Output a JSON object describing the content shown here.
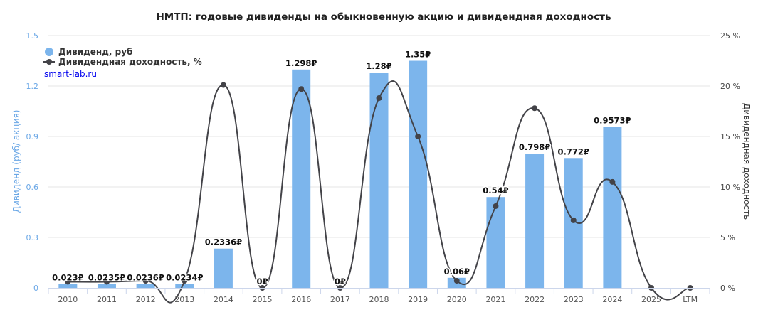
{
  "chart_data": {
    "type": "bar",
    "title": "НМТП: годовые дивиденды на обыкновенную акцию и дивидендная доходность",
    "credit": "smart-lab.ru",
    "categories": [
      "2010",
      "2011",
      "2012",
      "2013",
      "2014",
      "2015",
      "2016",
      "2017",
      "2018",
      "2019",
      "2020",
      "2021",
      "2022",
      "2023",
      "2024",
      "2025",
      "LTM"
    ],
    "y_left": {
      "label": "Дивиденд (руб/ акция)",
      "range": [
        0,
        1.5
      ],
      "ticks": [
        "0",
        "0.3",
        "0.6",
        "0.9",
        "1.2",
        "1.5"
      ],
      "tick_values": [
        0,
        0.3,
        0.6,
        0.9,
        1.2,
        1.5
      ]
    },
    "y_right": {
      "label": "Дивидендная доходность",
      "range": [
        0,
        25
      ],
      "ticks": [
        "0 %",
        "5 %",
        "10 %",
        "15 %",
        "20 %",
        "25 %"
      ],
      "tick_values": [
        0,
        5,
        10,
        15,
        20,
        25
      ]
    },
    "series": [
      {
        "name": "Дивиденд, руб",
        "type": "bar",
        "axis": "left",
        "color": "#7cb5ec",
        "values": [
          0.023,
          0.0235,
          0.0236,
          0.0234,
          0.2336,
          0,
          1.298,
          0,
          1.28,
          1.35,
          0.06,
          0.54,
          0.798,
          0.772,
          0.9573,
          null,
          null
        ],
        "labels": [
          "0.023₽",
          "0.0235₽",
          "0.0236₽",
          "0.0234₽",
          "0.2336₽",
          "0₽",
          "1.298₽",
          "0₽",
          "1.28₽",
          "1.35₽",
          "0.06₽",
          "0.54₽",
          "0.798₽",
          "0.772₽",
          "0.9573₽",
          "",
          ""
        ]
      },
      {
        "name": "Дивидендная доходность, %",
        "type": "line",
        "axis": "right",
        "color": "#434348",
        "values": [
          0.6,
          0.6,
          0.7,
          0.7,
          20.1,
          0,
          19.7,
          0,
          18.8,
          15.0,
          0.7,
          8.1,
          17.8,
          6.7,
          10.5,
          0,
          0
        ]
      }
    ],
    "legend_position": "top-left",
    "grid": true
  }
}
